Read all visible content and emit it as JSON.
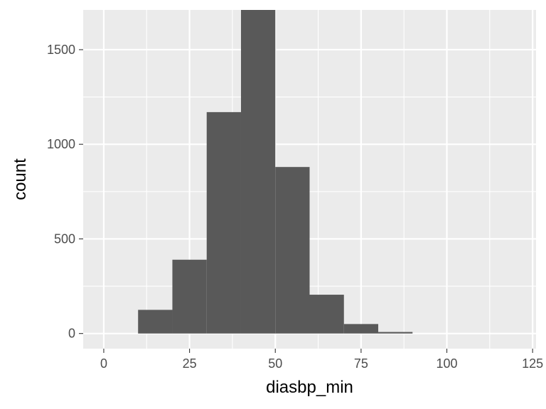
{
  "chart_data": {
    "type": "bar",
    "subtype": "histogram",
    "xlabel": "diasbp_min",
    "ylabel": "count",
    "xlim": [
      -6,
      126
    ],
    "ylim": [
      -80,
      1710
    ],
    "x_ticks": [
      0,
      25,
      50,
      75,
      100,
      125
    ],
    "y_ticks": [
      0,
      500,
      1000,
      1500
    ],
    "bins": [
      {
        "x0": 10,
        "x1": 20,
        "count": 125
      },
      {
        "x0": 20,
        "x1": 30,
        "count": 390
      },
      {
        "x0": 30,
        "x1": 40,
        "count": 1170
      },
      {
        "x0": 40,
        "x1": 50,
        "count": 1710
      },
      {
        "x0": 50,
        "x1": 60,
        "count": 880
      },
      {
        "x0": 60,
        "x1": 70,
        "count": 205
      },
      {
        "x0": 70,
        "x1": 80,
        "count": 50
      },
      {
        "x0": 80,
        "x1": 90,
        "count": 8
      }
    ],
    "grid": true,
    "colors": {
      "panel": "#ebebeb",
      "grid_major": "#ffffff",
      "bar": "#595959",
      "tick_text": "#4d4d4d",
      "tick_mark": "#333333"
    }
  }
}
